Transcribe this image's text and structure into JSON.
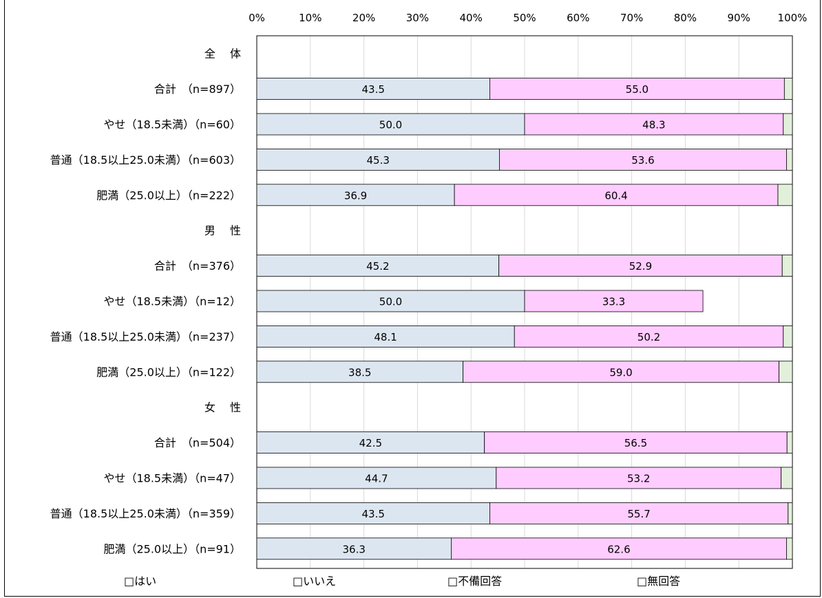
{
  "chart_data": {
    "type": "bar",
    "orientation": "horizontal",
    "stacked": "percent",
    "xlim": [
      0,
      100
    ],
    "xticks": [
      "0%",
      "10%",
      "20%",
      "30%",
      "40%",
      "50%",
      "60%",
      "70%",
      "80%",
      "90%",
      "100%"
    ],
    "grid": true,
    "legend_position": "bottom",
    "series": [
      {
        "name": "はい",
        "color": "#dce6f1"
      },
      {
        "name": "いいえ",
        "color": "#ffccff"
      },
      {
        "name": "不備回答",
        "color": "#ffcc66"
      },
      {
        "name": "無回答",
        "color": "#e2efda"
      }
    ],
    "rows": [
      {
        "label": "全　 体",
        "header": true
      },
      {
        "label": "合計　（n=897）",
        "values": [
          43.5,
          55.0,
          0,
          1.5
        ]
      },
      {
        "label": "やせ（18.5未満）（n=60）",
        "values": [
          50.0,
          48.3,
          0,
          1.7
        ]
      },
      {
        "label": "普通（18.5以上25.0未満）（n=603）",
        "values": [
          45.3,
          53.6,
          0,
          1.1
        ]
      },
      {
        "label": "肥満（25.0以上）（n=222）",
        "values": [
          36.9,
          60.4,
          0,
          2.7
        ]
      },
      {
        "label": "男　 性",
        "header": true
      },
      {
        "label": "合計　（n=376）",
        "values": [
          45.2,
          52.9,
          0,
          1.9
        ]
      },
      {
        "label": "やせ（18.5未満）（n=12）",
        "values": [
          50.0,
          33.3,
          0,
          0
        ]
      },
      {
        "label": "普通（18.5以上25.0未満）（n=237）",
        "values": [
          48.1,
          50.2,
          0,
          1.7
        ]
      },
      {
        "label": "肥満（25.0以上）（n=122）",
        "values": [
          38.5,
          59.0,
          0,
          2.5
        ]
      },
      {
        "label": "女　 性",
        "header": true
      },
      {
        "label": "合計　（n=504）",
        "values": [
          42.5,
          56.5,
          0,
          1.0
        ]
      },
      {
        "label": "やせ（18.5未満）（n=47）",
        "values": [
          44.7,
          53.2,
          0,
          2.1
        ]
      },
      {
        "label": "普通（18.5以上25.0未満）（n=359）",
        "values": [
          43.5,
          55.7,
          0,
          0.8
        ]
      },
      {
        "label": "肥満（25.0以上）（n=91）",
        "values": [
          36.3,
          62.6,
          0,
          1.1
        ]
      }
    ],
    "data_labels": [
      [
        "43.5",
        "55.0"
      ],
      [
        "50.0",
        "48.3"
      ],
      [
        "45.3",
        "53.6"
      ],
      [
        "36.9",
        "60.4"
      ],
      [
        "45.2",
        "52.9"
      ],
      [
        "50.0",
        "33.3"
      ],
      [
        "48.1",
        "50.2"
      ],
      [
        "38.5",
        "59.0"
      ],
      [
        "42.5",
        "56.5"
      ],
      [
        "44.7",
        "53.2"
      ],
      [
        "43.5",
        "55.7"
      ],
      [
        "36.3",
        "62.6"
      ]
    ],
    "legend_labels": [
      "□はい",
      "□いいえ",
      "□不備回答",
      "□無回答"
    ]
  }
}
